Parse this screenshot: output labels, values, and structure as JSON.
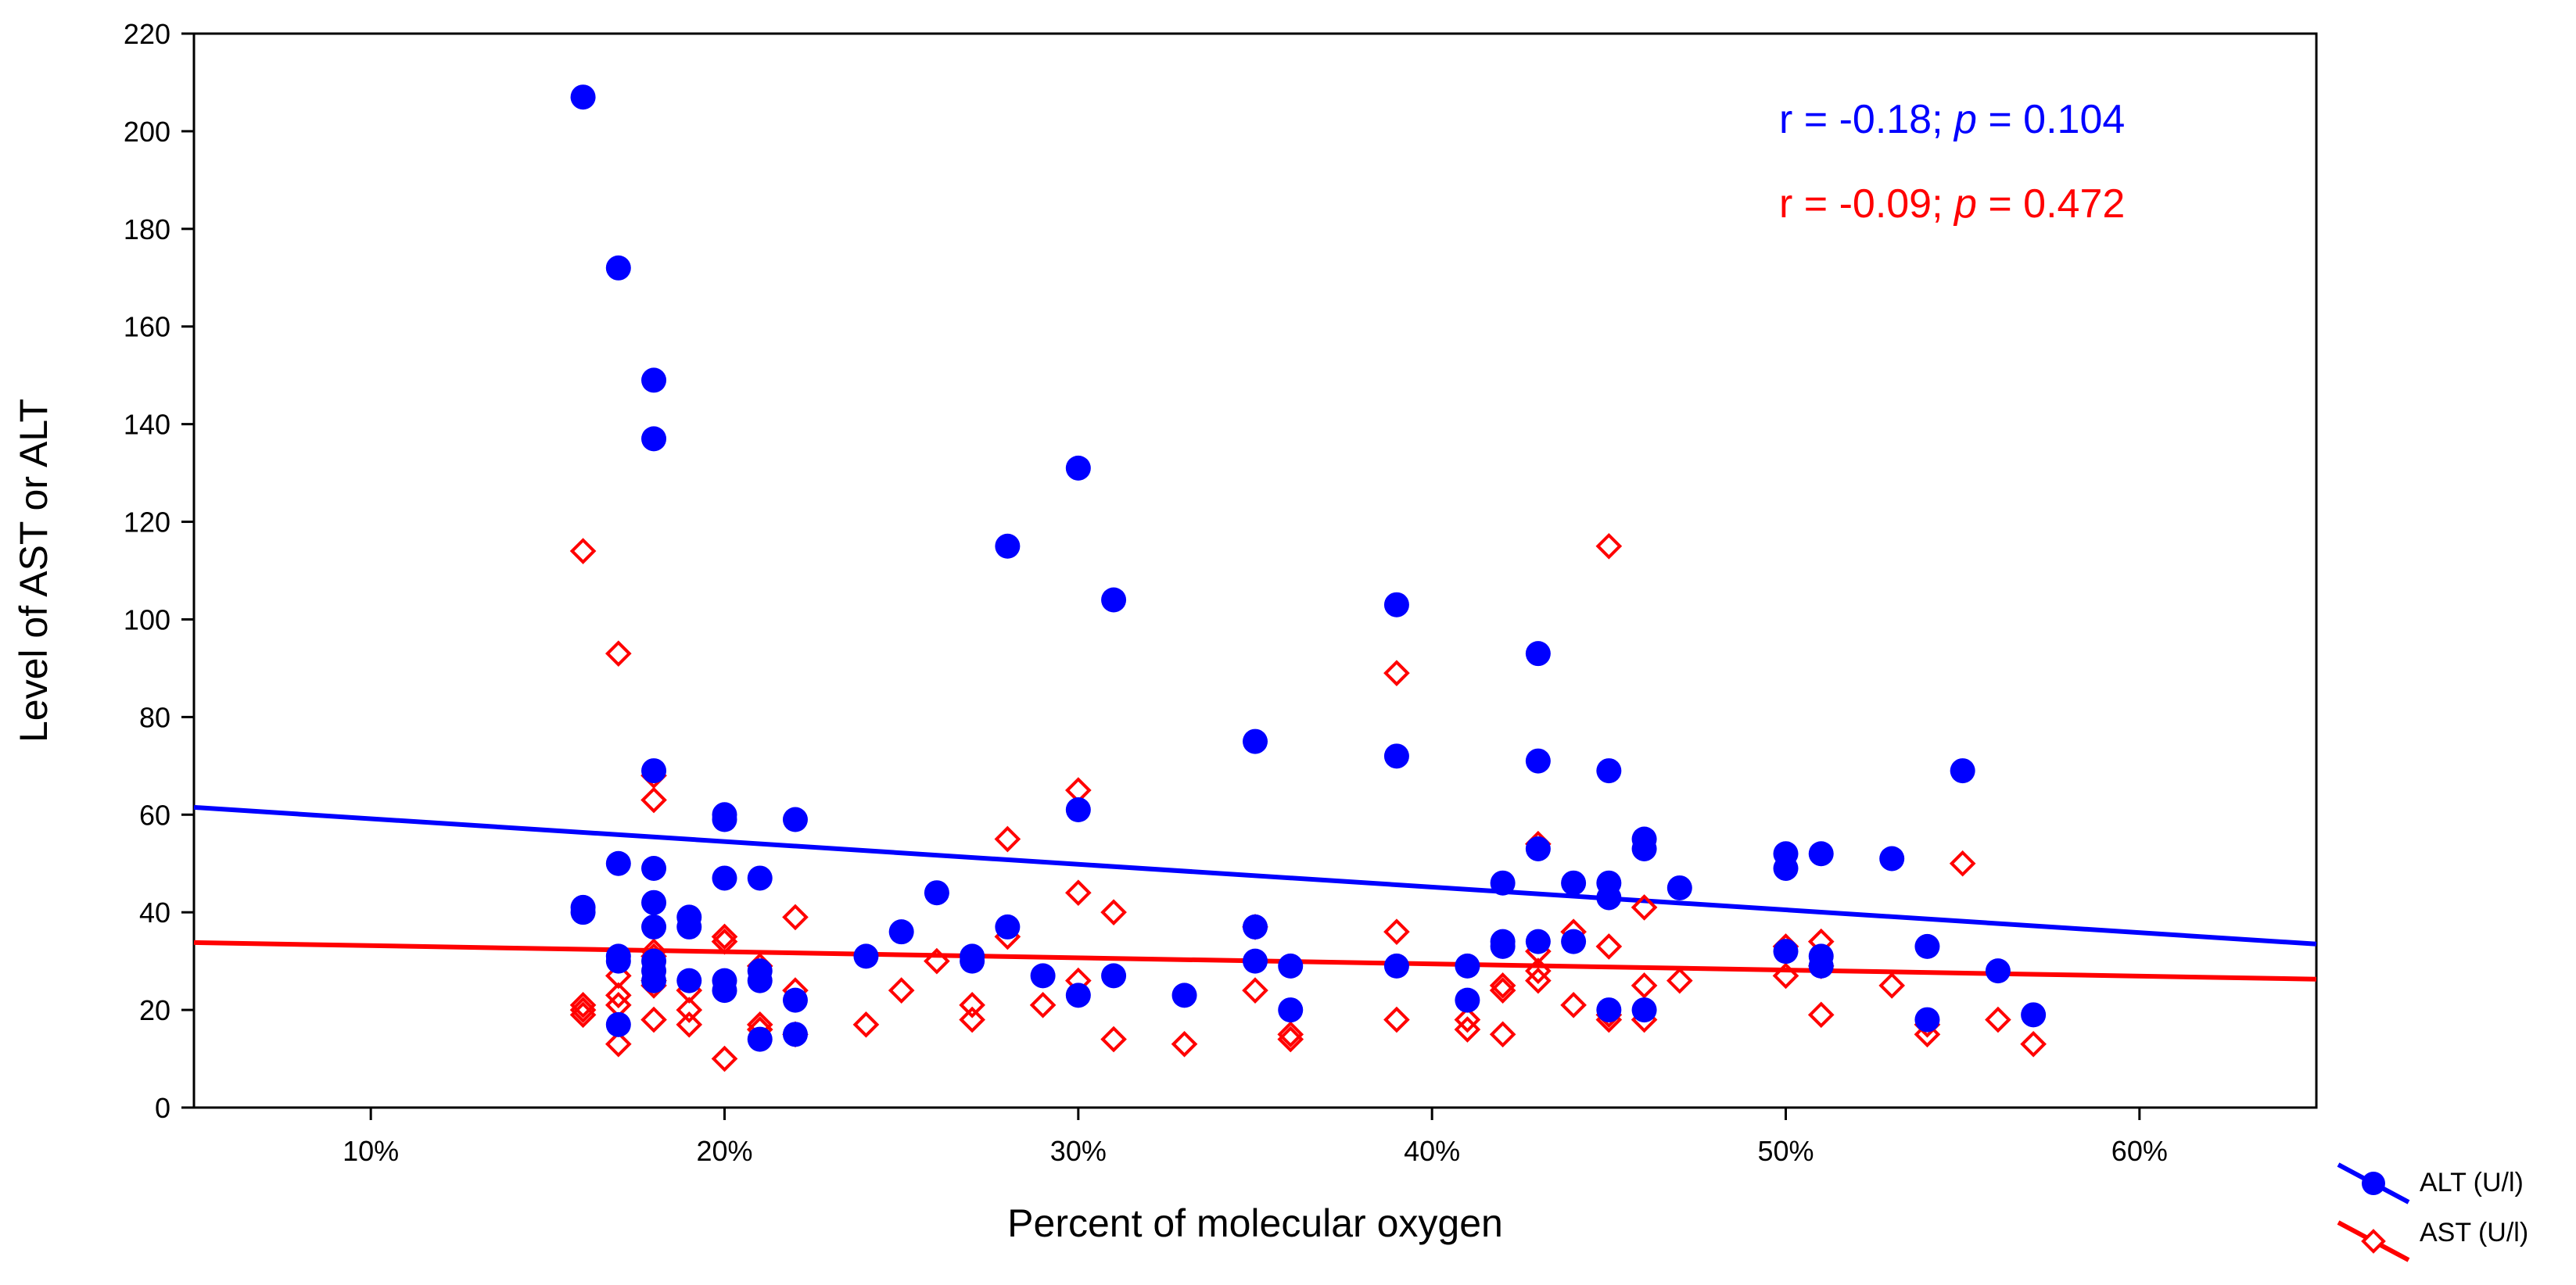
{
  "chart_data": {
    "type": "scatter",
    "title": "",
    "xlabel": "Percent of molecular oxygen",
    "ylabel": "Level of AST or ALT",
    "xlim": [
      5,
      65
    ],
    "ylim": [
      0,
      220
    ],
    "x_ticks": [
      10,
      20,
      30,
      40,
      50,
      60
    ],
    "x_tick_labels": [
      "10%",
      "20%",
      "30%",
      "40%",
      "50%",
      "60%"
    ],
    "y_ticks": [
      0,
      20,
      40,
      60,
      80,
      100,
      120,
      140,
      160,
      180,
      200,
      220
    ],
    "y_tick_labels": [
      "0",
      "20",
      "40",
      "60",
      "80",
      "100",
      "120",
      "140",
      "160",
      "180",
      "200",
      "220"
    ],
    "grid": false,
    "legend_position": "bottom-right, outside plot",
    "series": [
      {
        "name": "ALT (U/l)",
        "marker": "circle",
        "color": "#0000ff",
        "fit_line": {
          "x": [
            5,
            65
          ],
          "y": [
            61.5,
            33.5
          ]
        },
        "points": [
          [
            16,
            207
          ],
          [
            17,
            172
          ],
          [
            18,
            149
          ],
          [
            18,
            137
          ],
          [
            28,
            115
          ],
          [
            30,
            131
          ],
          [
            31,
            104
          ],
          [
            39,
            103
          ],
          [
            43,
            93
          ],
          [
            35,
            75
          ],
          [
            39,
            72
          ],
          [
            43,
            71
          ],
          [
            45,
            69
          ],
          [
            55,
            69
          ],
          [
            18,
            69
          ],
          [
            30,
            61
          ],
          [
            20,
            60
          ],
          [
            20,
            59
          ],
          [
            22,
            59
          ],
          [
            46,
            55
          ],
          [
            46,
            53
          ],
          [
            43,
            53
          ],
          [
            50,
            52
          ],
          [
            51,
            52
          ],
          [
            53,
            51
          ],
          [
            50,
            49
          ],
          [
            17,
            50
          ],
          [
            18,
            49
          ],
          [
            20,
            47
          ],
          [
            21,
            47
          ],
          [
            47,
            45
          ],
          [
            42,
            46
          ],
          [
            44,
            46
          ],
          [
            45,
            46
          ],
          [
            45,
            43
          ],
          [
            26,
            44
          ],
          [
            18,
            42
          ],
          [
            16,
            41
          ],
          [
            16,
            40
          ],
          [
            19,
            39
          ],
          [
            19,
            37
          ],
          [
            18,
            37
          ],
          [
            28,
            37
          ],
          [
            35,
            37
          ],
          [
            25,
            36
          ],
          [
            42,
            34
          ],
          [
            43,
            34
          ],
          [
            44,
            34
          ],
          [
            42,
            33
          ],
          [
            54,
            33
          ],
          [
            50,
            32
          ],
          [
            51,
            31
          ],
          [
            24,
            31
          ],
          [
            27,
            31
          ],
          [
            17,
            31
          ],
          [
            17,
            30
          ],
          [
            35,
            30
          ],
          [
            18,
            30
          ],
          [
            27,
            30
          ],
          [
            36,
            29
          ],
          [
            39,
            29
          ],
          [
            41,
            29
          ],
          [
            51,
            29
          ],
          [
            56,
            28
          ],
          [
            18,
            28
          ],
          [
            21,
            28
          ],
          [
            29,
            27
          ],
          [
            31,
            27
          ],
          [
            18,
            26
          ],
          [
            19,
            26
          ],
          [
            20,
            26
          ],
          [
            20,
            24
          ],
          [
            21,
            26
          ],
          [
            22,
            22
          ],
          [
            30,
            23
          ],
          [
            33,
            23
          ],
          [
            41,
            22
          ],
          [
            17,
            17
          ],
          [
            21,
            14
          ],
          [
            22,
            15
          ],
          [
            36,
            20
          ],
          [
            45,
            20
          ],
          [
            46,
            20
          ],
          [
            57,
            19
          ],
          [
            54,
            18
          ]
        ]
      },
      {
        "name": "AST (U/l)",
        "marker": "diamond",
        "color": "#ff0000",
        "fit_line": {
          "x": [
            5,
            65
          ],
          "y": [
            33.8,
            26.3
          ]
        },
        "points": [
          [
            16,
            114
          ],
          [
            45,
            115
          ],
          [
            17,
            93
          ],
          [
            39,
            89
          ],
          [
            18,
            68
          ],
          [
            18,
            63
          ],
          [
            30,
            65
          ],
          [
            28,
            55
          ],
          [
            43,
            54
          ],
          [
            55,
            50
          ],
          [
            30,
            44
          ],
          [
            46,
            41
          ],
          [
            31,
            40
          ],
          [
            22,
            39
          ],
          [
            35,
            37
          ],
          [
            39,
            36
          ],
          [
            44,
            36
          ],
          [
            20,
            35
          ],
          [
            20,
            34
          ],
          [
            28,
            35
          ],
          [
            51,
            34
          ],
          [
            50,
            33
          ],
          [
            45,
            33
          ],
          [
            18,
            32
          ],
          [
            43,
            32
          ],
          [
            18,
            31
          ],
          [
            26,
            30
          ],
          [
            21,
            29
          ],
          [
            51,
            29
          ],
          [
            17,
            27
          ],
          [
            43,
            28
          ],
          [
            43,
            26
          ],
          [
            47,
            26
          ],
          [
            30,
            26
          ],
          [
            50,
            27
          ],
          [
            18,
            26
          ],
          [
            18,
            25
          ],
          [
            19,
            24
          ],
          [
            22,
            24
          ],
          [
            25,
            24
          ],
          [
            35,
            24
          ],
          [
            42,
            25
          ],
          [
            42,
            24
          ],
          [
            46,
            25
          ],
          [
            53,
            25
          ],
          [
            17,
            23
          ],
          [
            17,
            21
          ],
          [
            19,
            20
          ],
          [
            27,
            21
          ],
          [
            29,
            21
          ],
          [
            44,
            21
          ],
          [
            16,
            21
          ],
          [
            16,
            20
          ],
          [
            16,
            19
          ],
          [
            18,
            18
          ],
          [
            19,
            17
          ],
          [
            24,
            17
          ],
          [
            27,
            18
          ],
          [
            39,
            18
          ],
          [
            41,
            18
          ],
          [
            45,
            19
          ],
          [
            45,
            18
          ],
          [
            46,
            18
          ],
          [
            51,
            19
          ],
          [
            56,
            18
          ],
          [
            21,
            17
          ],
          [
            21,
            16
          ],
          [
            22,
            15
          ],
          [
            36,
            15
          ],
          [
            36,
            14
          ],
          [
            41,
            16
          ],
          [
            42,
            15
          ],
          [
            54,
            17
          ],
          [
            54,
            15
          ],
          [
            17,
            13
          ],
          [
            31,
            14
          ],
          [
            33,
            13
          ],
          [
            57,
            13
          ],
          [
            20,
            10
          ]
        ]
      }
    ],
    "annotations": [
      {
        "parts": [
          {
            "text": "r = -0.18; ",
            "italic": false
          },
          {
            "text": "p",
            "italic": true
          },
          {
            "text": " = 0.104",
            "italic": false
          }
        ],
        "color": "#0000ff"
      },
      {
        "parts": [
          {
            "text": "r = -0.09; ",
            "italic": false
          },
          {
            "text": "p",
            "italic": true
          },
          {
            "text": " = 0.472",
            "italic": false
          }
        ],
        "color": "#ff0000"
      }
    ]
  }
}
